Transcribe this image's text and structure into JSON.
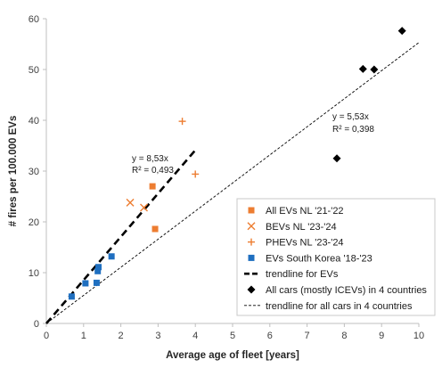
{
  "chart_data": {
    "type": "scatter",
    "xlabel": "Average age of fleet [years]",
    "ylabel": "# fires per 100.000 EVs",
    "xlim": [
      0,
      10
    ],
    "ylim": [
      0,
      60
    ],
    "x_ticks": [
      0,
      1,
      2,
      3,
      4,
      5,
      6,
      7,
      8,
      9,
      10
    ],
    "y_ticks": [
      0,
      10,
      20,
      30,
      40,
      50,
      60
    ],
    "grid": false,
    "legend_position": "bottom-right",
    "series": [
      {
        "name": "All EVs NL '21-'22",
        "marker": "square",
        "color": "#ed7d31",
        "points": [
          [
            2.85,
            27.0
          ],
          [
            2.92,
            18.6
          ]
        ]
      },
      {
        "name": "BEVs NL '23-'24",
        "marker": "x",
        "color": "#ed7d31",
        "points": [
          [
            2.25,
            23.8
          ],
          [
            2.62,
            22.8
          ]
        ]
      },
      {
        "name": "PHEVs NL '23-'24",
        "marker": "plus",
        "color": "#ed7d31",
        "points": [
          [
            3.65,
            39.8
          ],
          [
            4.0,
            29.4
          ]
        ]
      },
      {
        "name": "EVs South Korea '18-'23",
        "marker": "square",
        "color": "#1f6fc0",
        "points": [
          [
            0.68,
            5.3
          ],
          [
            1.05,
            7.9
          ],
          [
            1.35,
            8.0
          ],
          [
            1.38,
            10.3
          ],
          [
            1.4,
            11.1
          ],
          [
            1.75,
            13.2
          ]
        ]
      },
      {
        "name": "All cars (mostly ICEVs) in 4 countries",
        "marker": "diamond",
        "color": "#000000",
        "points": [
          [
            7.8,
            32.5
          ],
          [
            8.5,
            50.1
          ],
          [
            8.8,
            50.0
          ],
          [
            9.55,
            57.6
          ]
        ]
      }
    ],
    "trendlines": [
      {
        "name": "trendline for EVs",
        "style": "bold-dashed",
        "color": "#000000",
        "slope": 8.53,
        "x_range": [
          0,
          4.0
        ],
        "equation": "y = 8,53x",
        "r2": "R² = 0,493"
      },
      {
        "name": "trendline for all cars in 4 countries",
        "style": "thin-dashed",
        "color": "#000000",
        "slope": 5.53,
        "x_range": [
          0,
          10
        ],
        "equation": "y = 5,53x",
        "r2": "R² = 0,398"
      }
    ],
    "legend": [
      "All EVs NL '21-'22",
      "BEVs NL '23-'24",
      "PHEVs NL '23-'24",
      "EVs South Korea '18-'23",
      "trendline for EVs",
      "All cars (mostly ICEVs) in 4 countries",
      "trendline for all cars in 4 countries"
    ]
  }
}
